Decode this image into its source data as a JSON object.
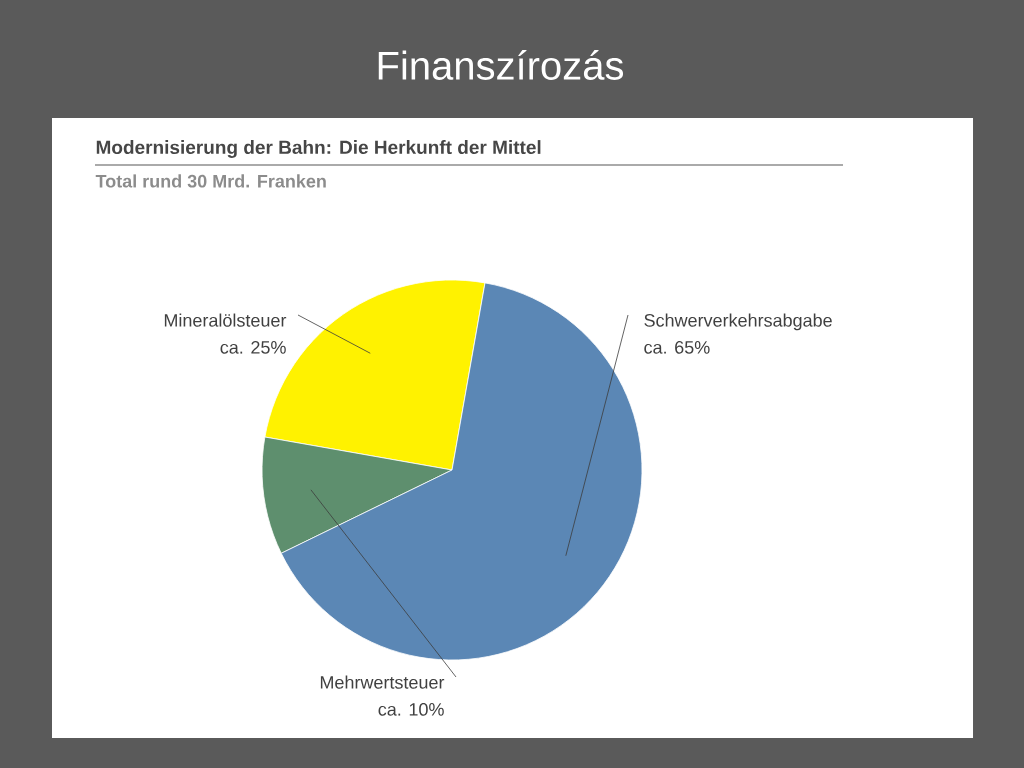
{
  "chart_data": {
    "type": "pie",
    "title": "Modernisierung der Bahn: Die Herkunft der Mittel",
    "subtitle": "Total rund 30 Mrd. Franken",
    "annotations": [
      "Finanszírozás"
    ],
    "categories": [
      "Mineralölsteuer",
      "Mehrwertsteuer",
      "Schwerverkehrsabgabe"
    ],
    "values": [
      25,
      10,
      65
    ],
    "value_labels": [
      "ca. 25%",
      "ca. 10%",
      "ca. 65%"
    ],
    "colors": [
      "#fff200",
      "#5e8f6e",
      "#5b87b5"
    ]
  }
}
